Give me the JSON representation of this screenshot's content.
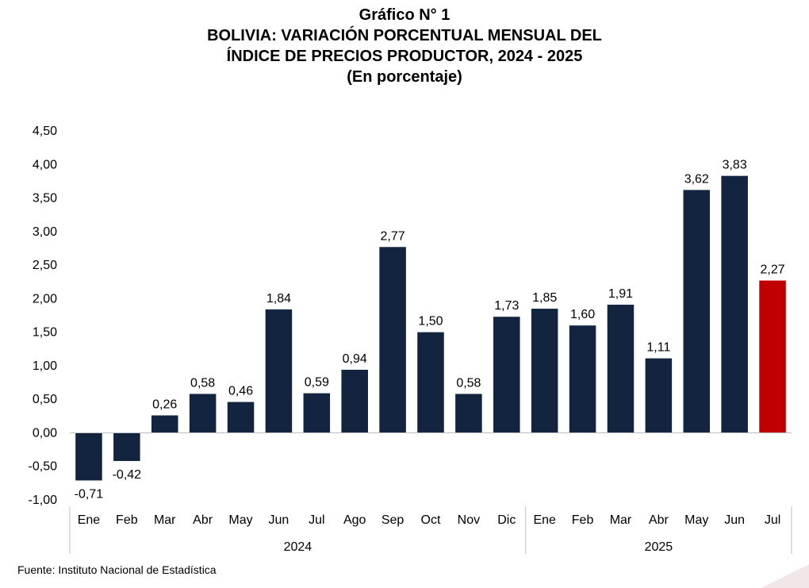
{
  "title": {
    "line1": "Gráfico N° 1",
    "line2": "BOLIVIA: VARIACIÓN PORCENTUAL MENSUAL DEL",
    "line3": "ÍNDICE DE PRECIOS PRODUCTOR, 2024 - 2025",
    "line4": "(En porcentaje)"
  },
  "source": "Fuente: Instituto Nacional de Estadística",
  "colors": {
    "bar": "#12243f",
    "highlight": "#c00000",
    "axis": "#bfbfbf"
  },
  "chart_data": {
    "type": "bar",
    "categories": [
      "Ene",
      "Feb",
      "Mar",
      "Abr",
      "May",
      "Jun",
      "Jul",
      "Ago",
      "Sep",
      "Oct",
      "Nov",
      "Dic",
      "Ene",
      "Feb",
      "Mar",
      "Abr",
      "May",
      "Jun",
      "Jul"
    ],
    "groups": [
      {
        "label": "2024",
        "start": 0,
        "end": 11
      },
      {
        "label": "2025",
        "start": 12,
        "end": 18
      }
    ],
    "values": [
      -0.71,
      -0.42,
      0.26,
      0.58,
      0.46,
      1.84,
      0.59,
      0.94,
      2.77,
      1.5,
      0.58,
      1.73,
      1.85,
      1.6,
      1.91,
      1.11,
      3.62,
      3.83,
      2.27
    ],
    "value_labels": [
      "-0,71",
      "-0,42",
      "0,26",
      "0,58",
      "0,46",
      "1,84",
      "0,59",
      "0,94",
      "2,77",
      "1,50",
      "0,58",
      "1,73",
      "1,85",
      "1,60",
      "1,91",
      "1,11",
      "3,62",
      "3,83",
      "2,27"
    ],
    "highlight_index": 18,
    "ylim": [
      -1.0,
      4.5
    ],
    "yticks": [
      -1.0,
      -0.5,
      0.0,
      0.5,
      1.0,
      1.5,
      2.0,
      2.5,
      3.0,
      3.5,
      4.0,
      4.5
    ],
    "ytick_labels": [
      "-1,00",
      "-0,50",
      "0,00",
      "0,50",
      "1,00",
      "1,50",
      "2,00",
      "2,50",
      "3,00",
      "3,50",
      "4,00",
      "4,50"
    ],
    "grid": false,
    "legend": "none"
  }
}
